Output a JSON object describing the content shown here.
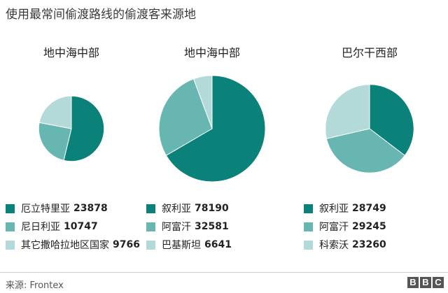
{
  "title": "使用最常间偷渡路线的偷渡客来源地",
  "colors": {
    "dark": "#0b8279",
    "mid": "#68b6b1",
    "light": "#b3dad8"
  },
  "chart_data": [
    {
      "type": "pie",
      "title": "地中海中部",
      "slices": [
        {
          "name": "厄立特里亚",
          "value": 23878,
          "color": "#0b8279"
        },
        {
          "name": "尼日利亚",
          "value": 10747,
          "color": "#68b6b1"
        },
        {
          "name": "其它撒哈拉地区国家",
          "value": 9766,
          "color": "#b3dad8"
        }
      ]
    },
    {
      "type": "pie",
      "title": "地中海中部",
      "slices": [
        {
          "name": "叙利亚",
          "value": 78190,
          "color": "#0b8279"
        },
        {
          "name": "阿富汗",
          "value": 32581,
          "color": "#68b6b1"
        },
        {
          "name": "巴基斯坦",
          "value": 6641,
          "color": "#b3dad8"
        }
      ]
    },
    {
      "type": "pie",
      "title": "巴尔干西部",
      "slices": [
        {
          "name": "叙利亚",
          "value": 28749,
          "color": "#0b8279"
        },
        {
          "name": "阿富汗",
          "value": 29245,
          "color": "#68b6b1"
        },
        {
          "name": "科索沃",
          "value": 23260,
          "color": "#b3dad8"
        }
      ]
    }
  ],
  "source": "来源: Frontex",
  "logo_letters": [
    "B",
    "B",
    "C"
  ]
}
